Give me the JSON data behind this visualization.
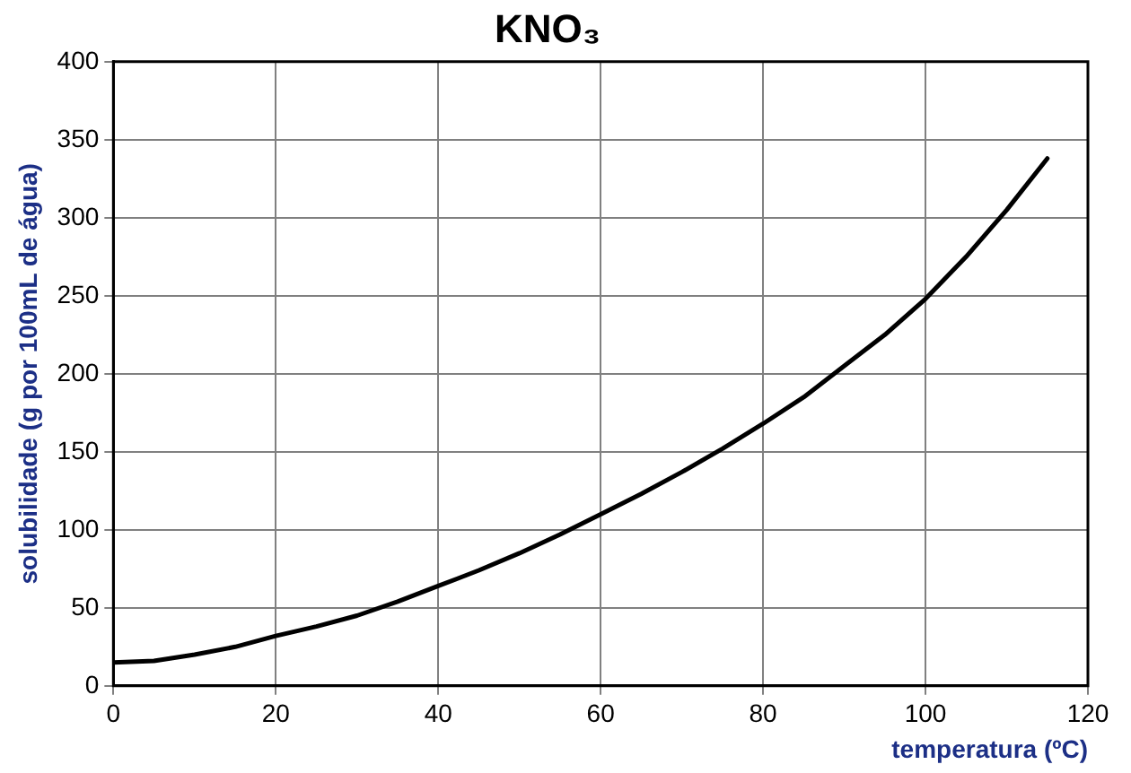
{
  "chart_data": {
    "type": "line",
    "title": "KNO₃",
    "xlabel": "temperatura (ºC)",
    "ylabel": "solubilidade (g por 100mL de água)",
    "x": [
      0,
      5,
      10,
      15,
      20,
      25,
      30,
      35,
      40,
      45,
      50,
      55,
      60,
      65,
      70,
      75,
      80,
      85,
      90,
      95,
      100,
      105,
      110,
      115
    ],
    "series": [
      {
        "color": "#000000",
        "values": [
          15,
          16,
          20,
          25,
          32,
          38,
          45,
          54,
          64,
          74,
          85,
          97,
          110,
          123,
          137,
          152,
          168,
          185,
          205,
          225,
          248,
          275,
          305,
          338
        ]
      }
    ],
    "xlim": [
      0,
      120
    ],
    "xticks": [
      0,
      20,
      40,
      60,
      80,
      100,
      120
    ],
    "ylim": [
      0,
      400
    ],
    "yticks": [
      0,
      50,
      100,
      150,
      200,
      250,
      300,
      350,
      400
    ],
    "grid": true,
    "legend": false,
    "marker": "none",
    "line_style": "solid"
  }
}
